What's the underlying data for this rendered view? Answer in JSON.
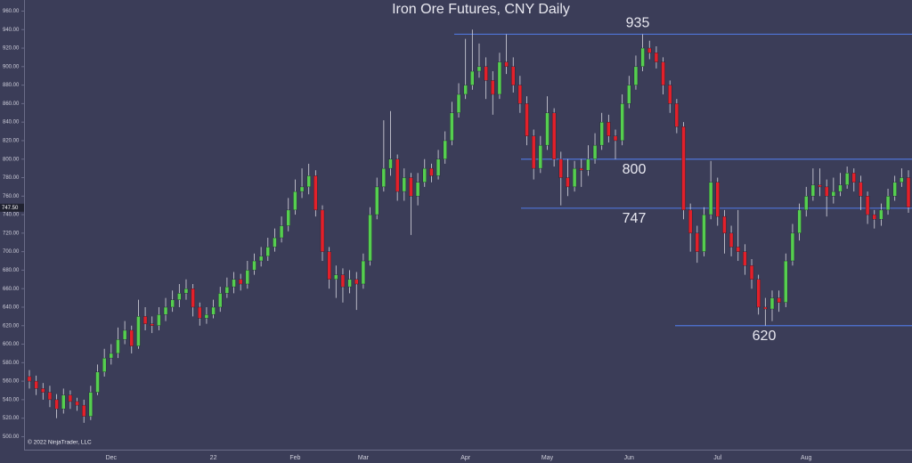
{
  "chart_data": {
    "type": "candlestick",
    "title": "Iron Ore Futures, CNY Daily",
    "copyright": "© 2022 NinjaTrader, LLC",
    "categories": [
      null,
      null,
      null,
      null,
      null,
      null,
      null,
      null,
      null,
      null,
      null,
      null,
      "Dec",
      null,
      null,
      null,
      null,
      null,
      null,
      null,
      null,
      null,
      null,
      null,
      null,
      null,
      null,
      "22",
      null,
      null,
      null,
      null,
      null,
      null,
      null,
      null,
      null,
      null,
      null,
      "Feb",
      null,
      null,
      null,
      null,
      null,
      null,
      null,
      null,
      null,
      "Mar",
      null,
      null,
      null,
      null,
      null,
      null,
      null,
      null,
      null,
      null,
      null,
      null,
      null,
      null,
      "Apr",
      null,
      null,
      null,
      null,
      null,
      null,
      null,
      null,
      null,
      null,
      null,
      "May",
      null,
      null,
      null,
      null,
      null,
      null,
      null,
      null,
      null,
      null,
      null,
      "Jun",
      null,
      null,
      null,
      null,
      null,
      null,
      null,
      null,
      null,
      null,
      null,
      null,
      "Jul",
      null,
      null,
      null,
      null,
      null,
      null,
      null,
      null,
      null,
      null,
      null,
      null,
      "Aug",
      null,
      null,
      null,
      null,
      null,
      null,
      null,
      null,
      null,
      null,
      null,
      null,
      null,
      null,
      null
    ],
    "open": [
      565,
      560,
      552,
      548,
      540,
      530,
      545,
      538,
      534,
      522,
      548,
      570,
      585,
      590,
      605,
      615,
      598,
      630,
      622,
      620,
      632,
      640,
      648,
      655,
      660,
      640,
      628,
      632,
      640,
      655,
      662,
      670,
      665,
      680,
      690,
      695,
      705,
      715,
      728,
      745,
      765,
      770,
      782,
      745,
      700,
      670,
      675,
      662,
      670,
      665,
      690,
      740,
      770,
      790,
      800,
      765,
      780,
      760,
      775,
      790,
      782,
      800,
      820,
      850,
      870,
      880,
      895,
      900,
      885,
      870,
      905,
      900,
      880,
      860,
      825,
      790,
      815,
      850,
      800,
      780,
      770,
      790,
      788,
      800,
      815,
      840,
      825,
      820,
      860,
      880,
      900,
      920,
      915,
      905,
      880,
      860,
      835,
      745,
      720,
      700,
      740,
      775,
      738,
      720,
      705,
      700,
      685,
      670,
      640,
      638,
      650,
      645,
      690,
      720,
      745,
      760,
      772,
      770,
      760,
      765,
      772,
      785,
      775,
      760,
      740,
      735,
      745,
      760,
      775,
      780
    ],
    "high": [
      572,
      566,
      558,
      555,
      546,
      552,
      550,
      542,
      540,
      555,
      578,
      595,
      600,
      618,
      625,
      620,
      648,
      640,
      630,
      640,
      650,
      658,
      665,
      670,
      665,
      645,
      640,
      648,
      662,
      672,
      678,
      676,
      690,
      698,
      705,
      715,
      725,
      738,
      758,
      778,
      790,
      795,
      788,
      750,
      705,
      685,
      682,
      680,
      678,
      698,
      748,
      780,
      842,
      852,
      805,
      790,
      785,
      785,
      800,
      795,
      810,
      830,
      862,
      882,
      930,
      940,
      925,
      910,
      895,
      915,
      935,
      910,
      890,
      868,
      832,
      825,
      868,
      855,
      808,
      800,
      798,
      800,
      815,
      828,
      850,
      848,
      832,
      870,
      890,
      912,
      935,
      928,
      922,
      910,
      885,
      865,
      840,
      752,
      728,
      748,
      798,
      780,
      745,
      728,
      745,
      708,
      692,
      675,
      650,
      658,
      658,
      698,
      730,
      752,
      770,
      790,
      790,
      778,
      780,
      785,
      792,
      790,
      782,
      765,
      745,
      752,
      768,
      782,
      790,
      788
    ],
    "low": [
      552,
      545,
      540,
      532,
      520,
      525,
      530,
      528,
      515,
      518,
      545,
      565,
      578,
      585,
      600,
      590,
      595,
      615,
      612,
      615,
      625,
      635,
      640,
      648,
      630,
      620,
      622,
      628,
      635,
      650,
      655,
      658,
      660,
      675,
      684,
      690,
      700,
      710,
      722,
      740,
      758,
      762,
      738,
      690,
      660,
      650,
      645,
      655,
      637,
      660,
      685,
      735,
      765,
      782,
      755,
      755,
      718,
      750,
      770,
      775,
      778,
      795,
      815,
      845,
      865,
      875,
      888,
      865,
      848,
      865,
      892,
      872,
      850,
      815,
      778,
      785,
      810,
      792,
      750,
      760,
      765,
      770,
      782,
      795,
      810,
      818,
      800,
      815,
      855,
      875,
      895,
      908,
      898,
      870,
      850,
      828,
      735,
      700,
      688,
      695,
      735,
      728,
      698,
      695,
      690,
      675,
      660,
      632,
      620,
      625,
      635,
      640,
      685,
      712,
      738,
      755,
      760,
      738,
      752,
      760,
      768,
      765,
      745,
      730,
      725,
      728,
      740,
      755,
      770,
      742
    ],
    "close": [
      560,
      552,
      548,
      540,
      530,
      545,
      538,
      534,
      522,
      548,
      570,
      585,
      590,
      605,
      615,
      598,
      630,
      622,
      620,
      632,
      640,
      648,
      655,
      660,
      640,
      628,
      632,
      640,
      655,
      662,
      670,
      665,
      680,
      690,
      695,
      705,
      715,
      728,
      745,
      765,
      770,
      782,
      745,
      700,
      670,
      675,
      662,
      670,
      665,
      690,
      740,
      770,
      790,
      800,
      765,
      780,
      760,
      775,
      790,
      782,
      800,
      820,
      850,
      870,
      880,
      895,
      900,
      885,
      870,
      905,
      900,
      880,
      860,
      825,
      790,
      815,
      850,
      800,
      780,
      770,
      790,
      788,
      800,
      815,
      840,
      825,
      820,
      860,
      880,
      900,
      920,
      915,
      905,
      880,
      860,
      835,
      745,
      720,
      700,
      740,
      775,
      738,
      720,
      705,
      700,
      685,
      670,
      640,
      638,
      650,
      645,
      690,
      720,
      745,
      760,
      772,
      770,
      760,
      765,
      772,
      785,
      775,
      760,
      740,
      735,
      745,
      760,
      775,
      780,
      748
    ],
    "up_color": "#55cf4f",
    "down_color": "#e3202a",
    "wick_color": "#d8d8e0",
    "levels": [
      935,
      800,
      747,
      620
    ],
    "level_color": "#4f74d8",
    "last_price": {
      "value": 747.5,
      "label": "747.50"
    },
    "ylim": [
      486,
      972
    ],
    "yticks": [
      {
        "value": 500,
        "label": "500.00"
      },
      {
        "value": 520,
        "label": "520.00"
      },
      {
        "value": 540,
        "label": "540.00"
      },
      {
        "value": 560,
        "label": "560.00"
      },
      {
        "value": 580,
        "label": "580.00"
      },
      {
        "value": 600,
        "label": "600.00"
      },
      {
        "value": 620,
        "label": "620.00"
      },
      {
        "value": 640,
        "label": "640.00"
      },
      {
        "value": 660,
        "label": "660.00"
      },
      {
        "value": 680,
        "label": "680.00"
      },
      {
        "value": 700,
        "label": "700.00"
      },
      {
        "value": 720,
        "label": "720.00"
      },
      {
        "value": 740,
        "label": "740.00"
      },
      {
        "value": 760,
        "label": "760.00"
      },
      {
        "value": 780,
        "label": "780.00"
      },
      {
        "value": 800,
        "label": "800.00"
      },
      {
        "value": 820,
        "label": "820.00"
      },
      {
        "value": 840,
        "label": "840.00"
      },
      {
        "value": 860,
        "label": "860.00"
      },
      {
        "value": 880,
        "label": "880.00"
      },
      {
        "value": 900,
        "label": "900.00"
      },
      {
        "value": 920,
        "label": "920.00"
      },
      {
        "value": 940,
        "label": "940.00"
      },
      {
        "value": 960,
        "label": "960.00"
      }
    ],
    "grid": false
  }
}
